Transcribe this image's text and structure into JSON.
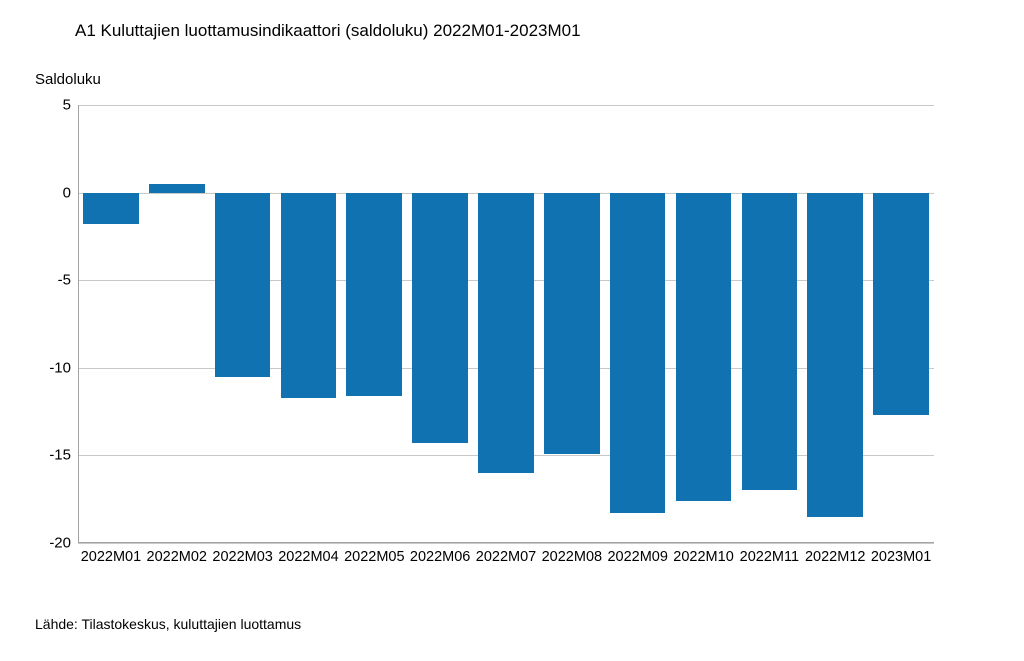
{
  "chart_data": {
    "type": "bar",
    "title": "A1 Kuluttajien luottamusindikaattori (saldoluku) 2022M01-2023M01",
    "ylabel": "Saldoluku",
    "xlabel": "",
    "source": "Lähde: Tilastokeskus, kuluttajien luottamus",
    "categories": [
      "2022M01",
      "2022M02",
      "2022M03",
      "2022M04",
      "2022M05",
      "2022M06",
      "2022M07",
      "2022M08",
      "2022M09",
      "2022M10",
      "2022M11",
      "2022M12",
      "2023M01"
    ],
    "values": [
      -1.8,
      0.5,
      -10.5,
      -11.7,
      -11.6,
      -14.3,
      -16.0,
      -14.9,
      -18.3,
      -17.6,
      -17.0,
      -18.5,
      -12.7
    ],
    "ylim": [
      -20,
      5
    ],
    "yticks": [
      5,
      0,
      -5,
      -10,
      -15,
      -20
    ],
    "grid": true,
    "legend": "none",
    "bar_color": "#1172b2",
    "grid_color": "#c9c9c9",
    "axis_color": "#a3a3a3",
    "text_color": "#000000"
  }
}
